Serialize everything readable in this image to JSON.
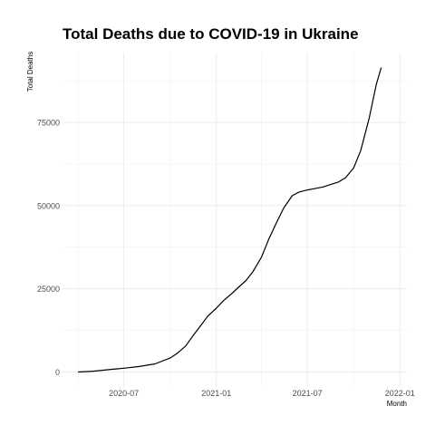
{
  "chart_data": {
    "type": "line",
    "title": "Total Deaths due to COVID-19 in Ukraine",
    "xlabel": "Month",
    "ylabel": "Total Deaths",
    "x_ticks": [
      "2020-07",
      "2021-01",
      "2021-07",
      "2022-01"
    ],
    "y_ticks": [
      "0",
      "25000",
      "50000",
      "75000"
    ],
    "y_tick_values": [
      0,
      25000,
      50000,
      75000
    ],
    "xlim": [
      "2020-03-01",
      "2022-01-15"
    ],
    "ylim": [
      -4500,
      96000
    ],
    "grid": true,
    "line_color": "#000000",
    "series": [
      {
        "x": [
          "2020-04-01",
          "2020-05-01",
          "2020-06-01",
          "2020-07-01",
          "2020-08-01",
          "2020-09-01",
          "2020-10-01",
          "2020-10-15",
          "2020-11-01",
          "2020-11-15",
          "2020-12-01",
          "2020-12-15",
          "2021-01-01",
          "2021-01-15",
          "2021-02-01",
          "2021-02-15",
          "2021-03-01",
          "2021-03-15",
          "2021-04-01",
          "2021-04-15",
          "2021-05-01",
          "2021-05-15",
          "2021-06-01",
          "2021-06-15",
          "2021-07-01",
          "2021-07-15",
          "2021-08-01",
          "2021-08-15",
          "2021-09-01",
          "2021-09-15",
          "2021-10-01",
          "2021-10-15",
          "2021-11-01",
          "2021-11-15",
          "2021-11-25"
        ],
        "y": [
          0,
          250,
          700,
          1150,
          1650,
          2450,
          4200,
          5600,
          7800,
          10800,
          14000,
          16800,
          19200,
          21400,
          23600,
          25600,
          27500,
          30200,
          34600,
          39800,
          45000,
          49300,
          53000,
          54100,
          54700,
          55100,
          55600,
          56300,
          57100,
          58400,
          61300,
          66500,
          76300,
          86400,
          91500
        ]
      }
    ]
  }
}
